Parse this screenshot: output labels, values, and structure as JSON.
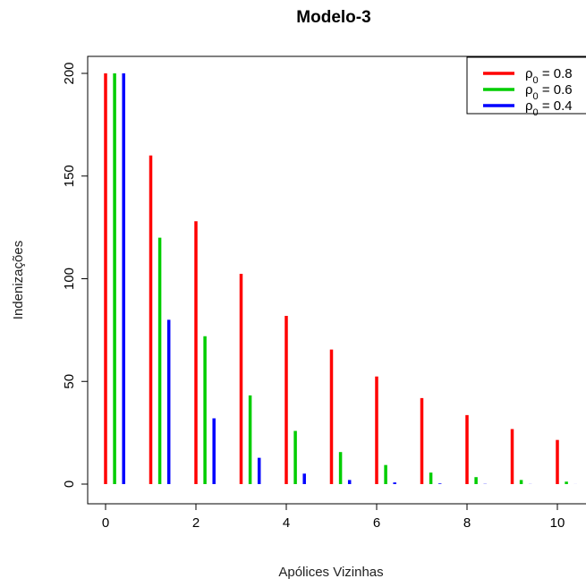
{
  "chart_data": {
    "type": "bar",
    "title": "Modelo-3",
    "xlabel": "Apólices Vizinhas",
    "ylabel": "Indenizações",
    "xlim": [
      0,
      10.5
    ],
    "ylim": [
      0,
      200
    ],
    "x_ticks": [
      "0",
      "2",
      "4",
      "6",
      "8",
      "10"
    ],
    "y_ticks": [
      "0",
      "50",
      "100",
      "150",
      "200"
    ],
    "grid": false,
    "legend_position": "top-right",
    "x": [
      0,
      1,
      2,
      3,
      4,
      5,
      6,
      7,
      8,
      9,
      10
    ],
    "series": [
      {
        "name": "ρ0 = 0.8",
        "legend": {
          "base": "ρ",
          "sub": "0",
          "rest": " = 0.8"
        },
        "color": "#ff0000",
        "offset": 0,
        "values": [
          200,
          160,
          128,
          102.4,
          81.9,
          65.5,
          52.4,
          41.9,
          33.6,
          26.8,
          21.5
        ]
      },
      {
        "name": "ρ0 = 0.6",
        "legend": {
          "base": "ρ",
          "sub": "0",
          "rest": " = 0.6"
        },
        "color": "#00cd00",
        "offset": 0.2,
        "values": [
          200,
          120,
          72,
          43.2,
          25.9,
          15.6,
          9.3,
          5.6,
          3.4,
          2.0,
          1.2
        ]
      },
      {
        "name": "ρ0 = 0.4",
        "legend": {
          "base": "ρ",
          "sub": "0",
          "rest": " = 0.4"
        },
        "color": "#0000ff",
        "offset": 0.4,
        "values": [
          200,
          80,
          32,
          12.8,
          5.1,
          2.0,
          0.8,
          0.3,
          0.1,
          0.05,
          0.02
        ]
      }
    ]
  }
}
